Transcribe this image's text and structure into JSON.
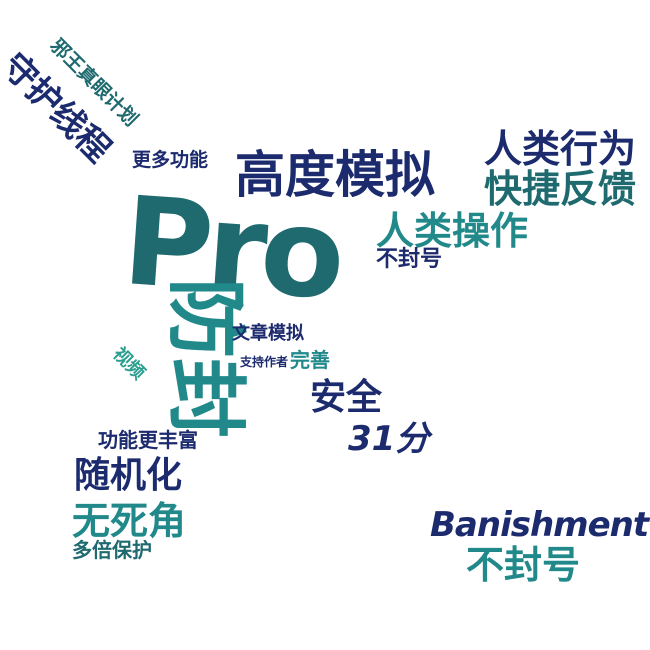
{
  "palette": {
    "navy": "#1c2a6e",
    "teal_dark": "#1e6a6f",
    "teal": "#21898a",
    "sea": "#2b9e8f"
  },
  "words": [
    {
      "id": "pro",
      "text": "Pro"
    },
    {
      "id": "fangfeng",
      "text": "防封"
    },
    {
      "id": "gaodu",
      "text": "高度模拟"
    },
    {
      "id": "renlei-xingwei",
      "text": "人类行为"
    },
    {
      "id": "kuaijie",
      "text": "快捷反馈"
    },
    {
      "id": "renlei-caozuo",
      "text": "人类操作"
    },
    {
      "id": "bufenghao-1",
      "text": "不封号"
    },
    {
      "id": "shouhu",
      "text": "守护线程"
    },
    {
      "id": "xiezhu",
      "text": "邪王真眼计划"
    },
    {
      "id": "gengduo",
      "text": "更多功能"
    },
    {
      "id": "wenzhang",
      "text": "文章模拟"
    },
    {
      "id": "zhichi",
      "text": "支持作者"
    },
    {
      "id": "wanshan",
      "text": "完善"
    },
    {
      "id": "shipin",
      "text": "视频"
    },
    {
      "id": "anquan",
      "text": "安全"
    },
    {
      "id": "score",
      "text": "31分"
    },
    {
      "id": "gongneng",
      "text": "功能更丰富"
    },
    {
      "id": "suiji",
      "text": "随机化"
    },
    {
      "id": "wusi",
      "text": "无死角"
    },
    {
      "id": "duobei",
      "text": "多倍保护"
    },
    {
      "id": "banishment",
      "text": "Banishment"
    },
    {
      "id": "bufenghao-2",
      "text": "不封号"
    }
  ]
}
